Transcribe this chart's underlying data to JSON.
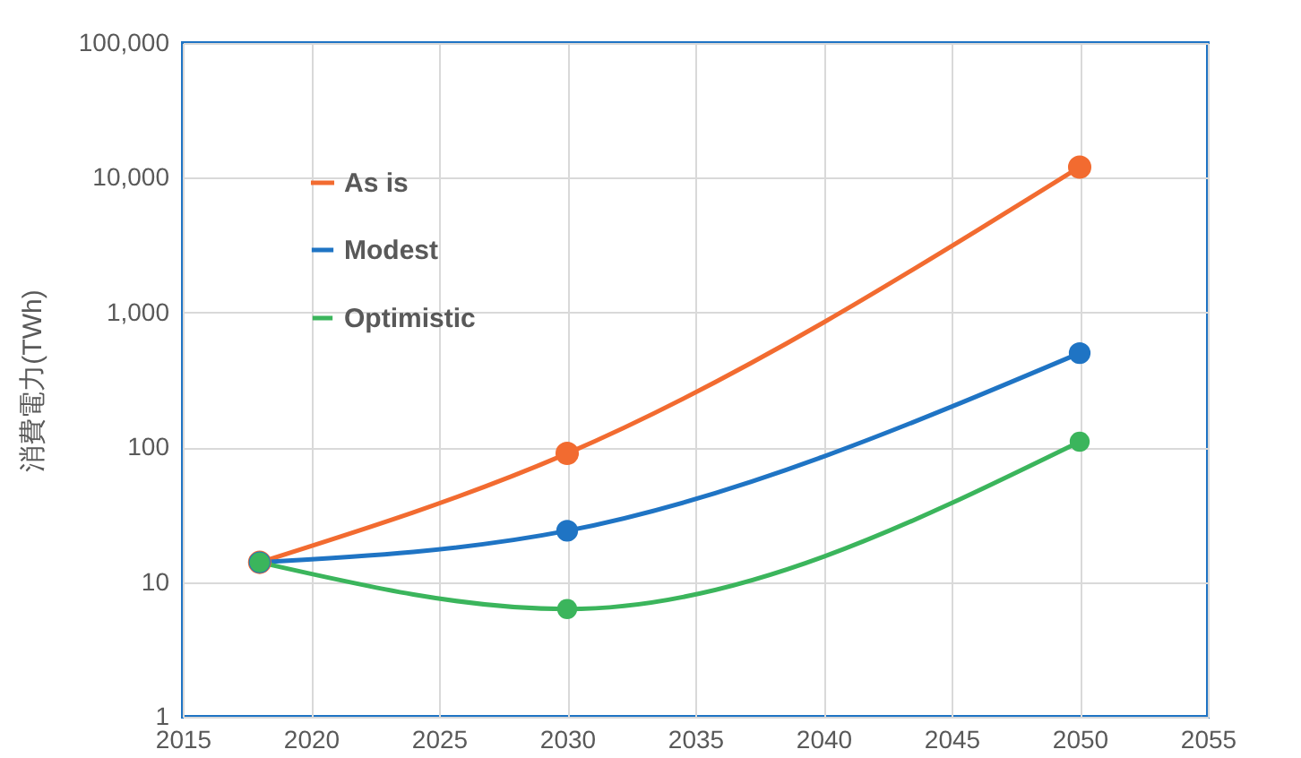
{
  "chart_data": {
    "type": "line",
    "ylabel": "消費電力(TWh)",
    "x": [
      2018,
      2030,
      2050
    ],
    "series": [
      {
        "name": "As is",
        "color": "#f26b30",
        "values": [
          14,
          90,
          12000
        ]
      },
      {
        "name": "Modest",
        "color": "#1f74c4",
        "values": [
          14,
          24,
          500
        ]
      },
      {
        "name": "Optimistic",
        "color": "#3bb55c",
        "values": [
          14,
          6.3,
          110
        ]
      }
    ],
    "log": true,
    "xlim": [
      2015,
      2055
    ],
    "xticks": [
      2015,
      2020,
      2025,
      2030,
      2035,
      2040,
      2045,
      2050,
      2055
    ],
    "ylim": [
      1,
      100000
    ],
    "yticks": [
      1,
      10,
      100,
      {
        "value": 1000,
        "label": "1,000"
      },
      {
        "value": 10000,
        "label": "10,000"
      },
      {
        "value": 100000,
        "label": "100,000"
      }
    ],
    "grid": true,
    "legend": "top left",
    "marker": "circle",
    "line_style": "solid"
  }
}
